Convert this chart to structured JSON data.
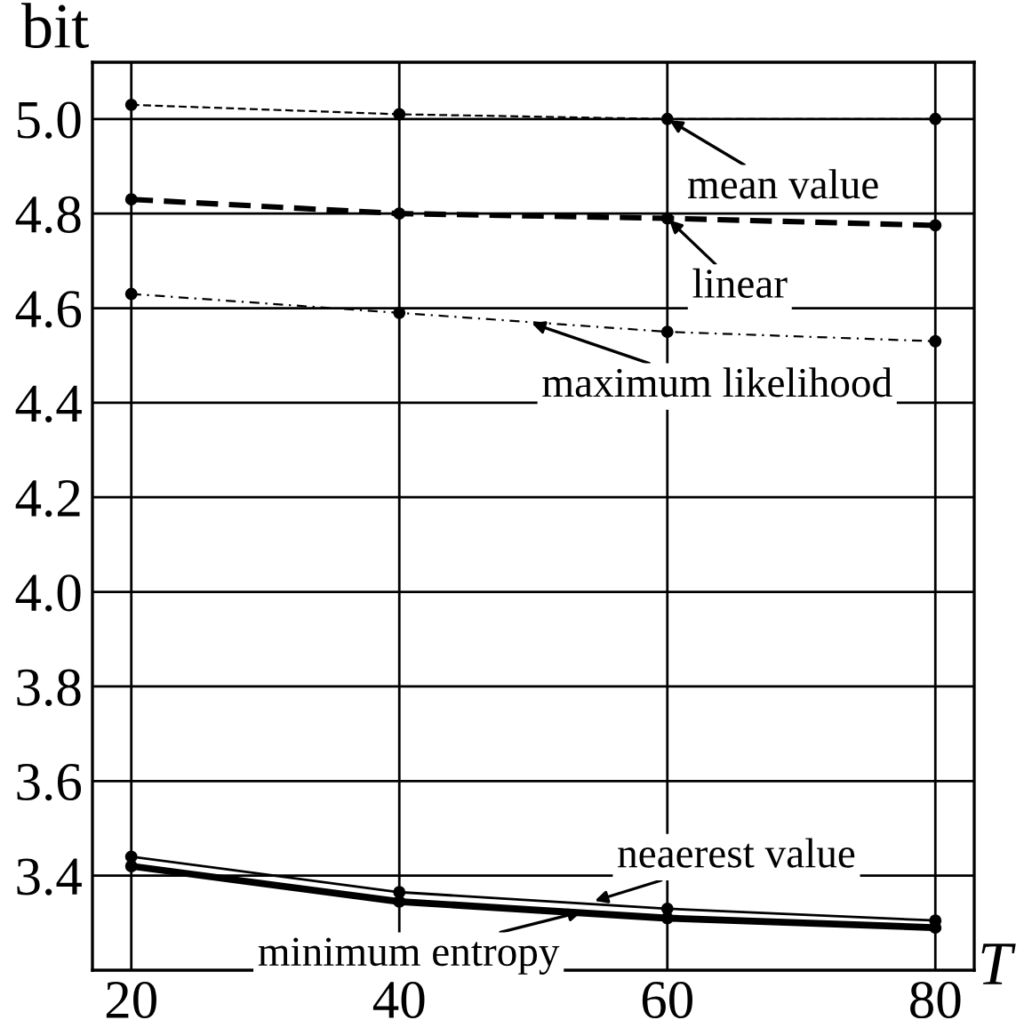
{
  "chart_data": {
    "type": "line",
    "xlabel": "T",
    "ylabel": "bit",
    "x": [
      20,
      40,
      60,
      80
    ],
    "series": [
      {
        "color": "#000000",
        "values": [
          5.03,
          5.01,
          5.0,
          5.0
        ],
        "line_style": "dashed"
      },
      {
        "color": "#000000",
        "values": [
          4.83,
          4.8,
          4.79,
          4.775
        ],
        "line_style": "dashed"
      },
      {
        "color": "#000000",
        "values": [
          4.63,
          4.59,
          4.55,
          4.53
        ],
        "line_style": "dotted"
      },
      {
        "color": "#000000",
        "values": [
          3.44,
          3.365,
          3.33,
          3.305
        ],
        "line_style": "solid"
      },
      {
        "color": "#000000",
        "values": [
          3.42,
          3.345,
          3.31,
          3.29
        ],
        "line_style": "solid"
      }
    ],
    "marker": "circle",
    "annotations": [
      {
        "text": "mean value",
        "x": 60,
        "y": 5.0
      },
      {
        "text": "linear",
        "x": 60,
        "y": 4.79
      },
      {
        "text": "maximum likelihood",
        "x": 49.7,
        "y": 4.57
      },
      {
        "text": "neaerest value",
        "x": 54.4,
        "y": 3.345
      },
      {
        "text": "minimum entropy",
        "x": 53.8,
        "y": 3.325
      }
    ],
    "xlim": [
      17.1,
      82.9
    ],
    "ylim": [
      3.2,
      5.12
    ],
    "xticks": [
      20,
      40,
      60,
      80
    ],
    "yticks": [
      3.4,
      3.6,
      3.8,
      {
        "value": 4,
        "label": "4.0"
      },
      4.2,
      4.4,
      4.6,
      4.8,
      {
        "value": 5,
        "label": "5.0"
      }
    ],
    "grid": true,
    "legend": false
  }
}
